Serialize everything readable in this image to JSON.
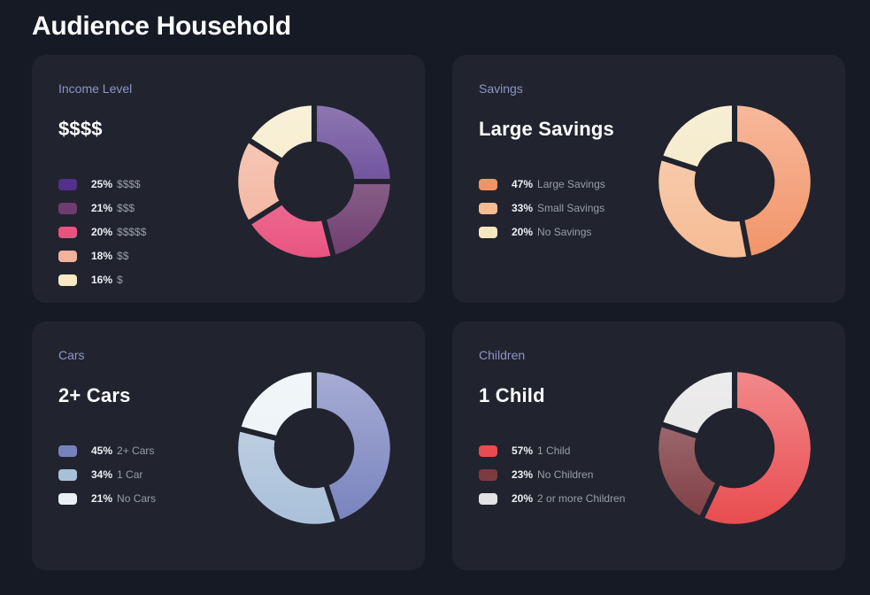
{
  "page_title": "Audience Household",
  "colors": {
    "page_bg": "#161a24",
    "card_bg": "#21242f",
    "card_title_text": "#8f93c8",
    "headline_text": "#ffffff",
    "legend_pct_text": "#eff0f3",
    "legend_label_text": "#989da6"
  },
  "chart_data": [
    {
      "type": "pie",
      "title": "Income Level",
      "headline": "$$$$",
      "start_angle": "top",
      "direction": "clockwise",
      "inner_radius_ratio": 0.5,
      "legend_position": "left",
      "slices": [
        {
          "label": "$$$$",
          "pct": 25,
          "color": "#533089"
        },
        {
          "label": "$$$",
          "pct": 21,
          "color": "#6e3c6e"
        },
        {
          "label": "$$$$$",
          "pct": 20,
          "color": "#e8537f"
        },
        {
          "label": "$$",
          "pct": 18,
          "color": "#f3b29b"
        },
        {
          "label": "$",
          "pct": 16,
          "color": "#f6e9c4"
        }
      ]
    },
    {
      "type": "pie",
      "title": "Savings",
      "headline": "Large Savings",
      "start_angle": "top",
      "direction": "clockwise",
      "inner_radius_ratio": 0.5,
      "legend_position": "left",
      "slices": [
        {
          "label": "Large Savings",
          "pct": 47,
          "color": "#f29367"
        },
        {
          "label": "Small Savings",
          "pct": 33,
          "color": "#f5bb93"
        },
        {
          "label": "No Savings",
          "pct": 20,
          "color": "#f3e6c0"
        }
      ]
    },
    {
      "type": "pie",
      "title": "Cars",
      "headline": "2+ Cars",
      "start_angle": "top",
      "direction": "clockwise",
      "inner_radius_ratio": 0.5,
      "legend_position": "left",
      "slices": [
        {
          "label": "2+ Cars",
          "pct": 45,
          "color": "#7781bd"
        },
        {
          "label": "1 Car",
          "pct": 34,
          "color": "#a9c0d9"
        },
        {
          "label": "No Cars",
          "pct": 21,
          "color": "#e9f1f6"
        }
      ]
    },
    {
      "type": "pie",
      "title": "Children",
      "headline": "1 Child",
      "start_angle": "top",
      "direction": "clockwise",
      "inner_radius_ratio": 0.5,
      "legend_position": "left",
      "slices": [
        {
          "label": "1 Child",
          "pct": 57,
          "color": "#e94b4e"
        },
        {
          "label": "No Children",
          "pct": 23,
          "color": "#7d3b41"
        },
        {
          "label": "2 or more Children",
          "pct": 20,
          "color": "#e4e2e2"
        }
      ]
    }
  ]
}
